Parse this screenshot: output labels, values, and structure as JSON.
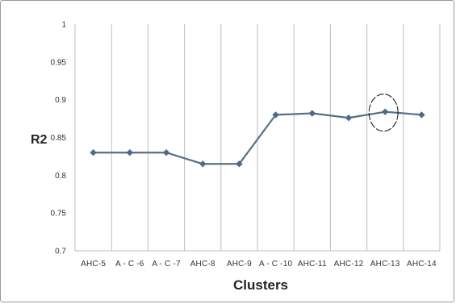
{
  "chart_data": {
    "type": "line",
    "title": "",
    "xlabel": "Clusters",
    "ylabel": "R2",
    "categories": [
      "AHC-5",
      "A - C -6",
      "A - C -7",
      "AHC-8",
      "AHC-9",
      "A - C -10",
      "AHC-11",
      "AHC-12",
      "AHC-13",
      "AHC-14"
    ],
    "series": [
      {
        "values": [
          0.83,
          0.83,
          0.83,
          0.815,
          0.815,
          0.88,
          0.882,
          0.876,
          0.884,
          0.88
        ]
      }
    ],
    "ylim": [
      0.7,
      1
    ],
    "yticks": [
      "0.7",
      "0.75",
      "0.8",
      "0.85",
      "0.9",
      "0.95",
      "1"
    ],
    "grid": "vertical",
    "legend": "none",
    "highlight_category": "AHC-13",
    "colors": {
      "line": "#5a6f86",
      "marker": "#4e6a88",
      "grid": "#bdbdbd",
      "highlight_ring": "#222222"
    }
  }
}
